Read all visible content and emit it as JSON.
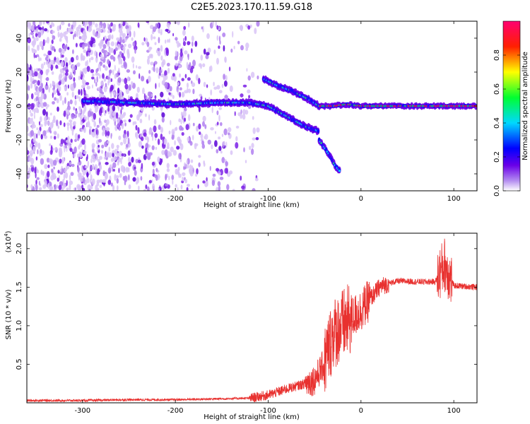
{
  "title": "C2E5.2023.170.11.59.G18",
  "chart_data": [
    {
      "type": "heatmap",
      "xlabel": "Height of straight line (km)",
      "ylabel": "Frequency (Hz)",
      "xlim": [
        -360,
        125
      ],
      "ylim": [
        -50,
        50
      ],
      "xticks": [
        -300,
        -200,
        -100,
        0,
        100
      ],
      "yticks": [
        -40,
        -20,
        0,
        20,
        40
      ],
      "colorbar": {
        "label": "Normalized spectral amplitude",
        "range": [
          0,
          1
        ],
        "ticks": [
          "0.0",
          "0.2",
          "0.4",
          "0.6",
          "0.8"
        ],
        "colors": [
          "#ffffff",
          "#8a2be2",
          "#0000ff",
          "#00e5ff",
          "#00ff00",
          "#ffff00",
          "#ff0000",
          "#ff0060"
        ]
      },
      "traces": [
        {
          "name": "",
          "points": [
            [
              -300,
              3
            ],
            [
              -250,
              2
            ],
            [
              -200,
              1
            ],
            [
              -150,
              2
            ],
            [
              -120,
              2
            ],
            [
              -100,
              0
            ],
            [
              -80,
              -6
            ],
            [
              -60,
              -12
            ],
            [
              -45,
              -15
            ]
          ]
        },
        {
          "name": "",
          "points": [
            [
              -105,
              16
            ],
            [
              -90,
              12
            ],
            [
              -75,
              9
            ],
            [
              -60,
              5
            ],
            [
              -45,
              0
            ],
            [
              -30,
              0
            ],
            [
              -15,
              1
            ],
            [
              0,
              0
            ],
            [
              50,
              0
            ],
            [
              125,
              0
            ]
          ]
        },
        {
          "name": "",
          "points": [
            [
              -45,
              -20
            ],
            [
              -35,
              -28
            ],
            [
              -28,
              -35
            ],
            [
              -22,
              -39
            ]
          ]
        }
      ]
    },
    {
      "type": "line",
      "xlabel": "Height of straight line (km)",
      "ylabel": "SNR (10 * v/v)",
      "multiplier": "(x10",
      "multiplier_exp": "4",
      "xlim": [
        -360,
        125
      ],
      "ylim": [
        0,
        2.2
      ],
      "xticks": [
        -300,
        -200,
        -100,
        0,
        100
      ],
      "yticks": [
        0.5,
        1.0,
        1.5,
        2.0
      ],
      "series": [
        {
          "name": "",
          "color": "#e8312f",
          "x": [
            -360,
            -300,
            -250,
            -200,
            -160,
            -120,
            -100,
            -80,
            -60,
            -50,
            -40,
            -30,
            -20,
            -10,
            0,
            10,
            20,
            30,
            40,
            60,
            80,
            90,
            100,
            125
          ],
          "y": [
            0.03,
            0.03,
            0.04,
            0.04,
            0.05,
            0.06,
            0.1,
            0.18,
            0.25,
            0.3,
            0.5,
            0.9,
            1.0,
            1.1,
            1.2,
            1.35,
            1.5,
            1.55,
            1.58,
            1.57,
            1.57,
            1.8,
            1.52,
            1.5
          ]
        }
      ]
    }
  ]
}
